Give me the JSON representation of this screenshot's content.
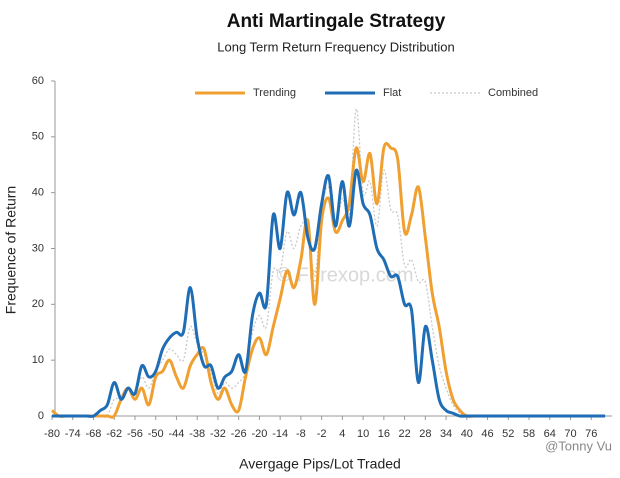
{
  "chart_data": {
    "type": "line",
    "title": "Anti Martingale Strategy",
    "subtitle": "Long Term Return Frequency Distribution",
    "x_label": "Avergage Pips/Lot Traded",
    "y_label": "Frequence of Return",
    "annotations": [
      "© Forexop.com",
      "@Tonny Vu"
    ],
    "legend": "top",
    "grid": false,
    "x": [
      -80,
      -78,
      -76,
      -74,
      -72,
      -70,
      -68,
      -66,
      -64,
      -62,
      -60,
      -58,
      -56,
      -54,
      -52,
      -50,
      -48,
      -46,
      -44,
      -42,
      -40,
      -38,
      -36,
      -34,
      -32,
      -30,
      -28,
      -26,
      -24,
      -22,
      -20,
      -18,
      -16,
      -14,
      -12,
      -10,
      -8,
      -6,
      -4,
      -2,
      0,
      2,
      4,
      6,
      8,
      10,
      12,
      14,
      16,
      18,
      20,
      22,
      24,
      26,
      28,
      30,
      32,
      34,
      36,
      38,
      40,
      42,
      44,
      46,
      48,
      50,
      52,
      54,
      56,
      58,
      60,
      62,
      64,
      66,
      68,
      70,
      72,
      74,
      76,
      78,
      80
    ],
    "xlim": [
      -80,
      82
    ],
    "xticks": [
      -80,
      -74,
      -68,
      -62,
      -56,
      -50,
      -44,
      -38,
      -32,
      -26,
      -20,
      -14,
      -8,
      -2,
      4,
      10,
      16,
      22,
      28,
      34,
      40,
      46,
      52,
      58,
      64,
      70,
      76
    ],
    "ylim": [
      0,
      60
    ],
    "yticks": [
      0,
      10,
      20,
      30,
      40,
      50,
      60
    ],
    "series": [
      {
        "name": "Trending",
        "color": "#f0a030",
        "style": "solid",
        "values": [
          1,
          0,
          0,
          0,
          0,
          0,
          0,
          0,
          0,
          0,
          3,
          5,
          3,
          5,
          2,
          7,
          8,
          10,
          7,
          5,
          9,
          11,
          12,
          6,
          3,
          5,
          2,
          1,
          7,
          12,
          14,
          11,
          16,
          21,
          26,
          23,
          28,
          35,
          20,
          35,
          39,
          33,
          35,
          38,
          48,
          42,
          47,
          38,
          48,
          48,
          46,
          33,
          36,
          41,
          32,
          22,
          16,
          8,
          3,
          1,
          0,
          0,
          0,
          0,
          0,
          0,
          0,
          0,
          0,
          0,
          0,
          0,
          0,
          0,
          0,
          0,
          0,
          0,
          0,
          0,
          0
        ]
      },
      {
        "name": "Flat",
        "color": "#1f6db5",
        "style": "solid",
        "values": [
          0,
          0,
          0,
          0,
          0,
          0,
          0,
          1,
          2,
          6,
          3,
          5,
          4,
          9,
          7,
          8,
          12,
          14,
          15,
          15,
          23,
          14,
          9,
          9,
          5,
          7,
          8,
          11,
          8,
          18,
          22,
          20,
          36,
          30,
          40,
          36,
          40,
          32,
          30,
          38,
          43,
          34,
          42,
          34,
          44,
          38,
          36,
          30,
          28,
          25,
          25,
          20,
          19,
          6,
          16,
          10,
          3,
          1,
          0.5,
          0,
          0,
          0,
          0,
          0,
          0,
          0,
          0,
          0,
          0,
          0,
          0,
          0,
          0,
          0,
          0,
          0,
          0,
          0,
          0,
          0,
          0
        ]
      },
      {
        "name": "Combined",
        "color": "#c8c8c8",
        "style": "dotted",
        "values": [
          0,
          0,
          0,
          0,
          0,
          0,
          0,
          0,
          0,
          3,
          3,
          5,
          4,
          7,
          5,
          8,
          10,
          12,
          11,
          10,
          16,
          13,
          11,
          8,
          4,
          6,
          5,
          6,
          8,
          15,
          18,
          16,
          26,
          26,
          33,
          30,
          34,
          34,
          25,
          37,
          41,
          34,
          39,
          36,
          55,
          40,
          42,
          34,
          44,
          37,
          36,
          27,
          28,
          24,
          24,
          16,
          9,
          5,
          2,
          0.5,
          0,
          0,
          0,
          0,
          0,
          0,
          0,
          0,
          0,
          0,
          0,
          0,
          0,
          0,
          0,
          0,
          0,
          0,
          0,
          0,
          0
        ]
      }
    ]
  }
}
